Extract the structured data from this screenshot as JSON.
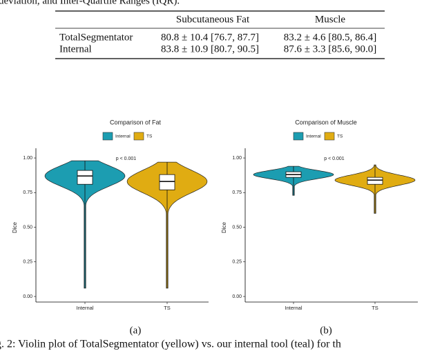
{
  "caption_top": "deviation, and Inter-Quartile Ranges (IQR).",
  "table": {
    "header": [
      "Subcutaneous Fat",
      "Muscle"
    ],
    "rows": [
      [
        "TotalSegmentator",
        "80.8 ± 10.4 [76.7, 87.7]",
        "83.2 ± 4.6 [80.5, 86.4]"
      ],
      [
        "Internal",
        "83.8 ± 10.9 [80.7, 90.5]",
        "87.6 ± 3.3 [85.6, 90.0]"
      ]
    ]
  },
  "chart_data": [
    {
      "type": "violin",
      "title": "Comparison of Fat",
      "ylabel": "Dice",
      "annotation": "p < 0.001",
      "subcaption": "(a)",
      "categories": [
        "Internal",
        "TS"
      ],
      "series": [
        {
          "name": "Internal",
          "color": "#1c9db1",
          "min": 0.06,
          "q1": 0.81,
          "median": 0.87,
          "q3": 0.91,
          "max": 0.98
        },
        {
          "name": "TS",
          "color": "#e0ac12",
          "min": 0.06,
          "q1": 0.77,
          "median": 0.83,
          "q3": 0.88,
          "max": 0.97
        }
      ],
      "ylim": [
        -0.04,
        1.07
      ],
      "yticks": [
        {
          "value": 0,
          "label": "0.00"
        },
        {
          "value": 0.25,
          "label": "0.25"
        },
        {
          "value": 0.5,
          "label": "0.50"
        },
        {
          "value": 0.75,
          "label": "0.75"
        },
        {
          "value": 1,
          "label": "1.00"
        }
      ]
    },
    {
      "type": "violin",
      "title": "Comparison of Muscle",
      "ylabel": "Dice",
      "annotation": "p < 0.001",
      "subcaption": "(b)",
      "categories": [
        "Internal",
        "TS"
      ],
      "series": [
        {
          "name": "Internal",
          "color": "#1c9db1",
          "min": 0.73,
          "q1": 0.86,
          "median": 0.88,
          "q3": 0.9,
          "max": 0.94
        },
        {
          "name": "TS",
          "color": "#e0ac12",
          "min": 0.6,
          "q1": 0.81,
          "median": 0.84,
          "q3": 0.86,
          "max": 0.95
        }
      ],
      "ylim": [
        -0.04,
        1.07
      ],
      "yticks": [
        {
          "value": 0,
          "label": "0.00"
        },
        {
          "value": 0.25,
          "label": "0.25"
        },
        {
          "value": 0.5,
          "label": "0.50"
        },
        {
          "value": 0.75,
          "label": "0.75"
        },
        {
          "value": 1,
          "label": "1.00"
        }
      ]
    }
  ],
  "caption_bottom": "g. 2: Violin plot of TotalSegmentator (yellow) vs. our internal tool (teal) for th"
}
